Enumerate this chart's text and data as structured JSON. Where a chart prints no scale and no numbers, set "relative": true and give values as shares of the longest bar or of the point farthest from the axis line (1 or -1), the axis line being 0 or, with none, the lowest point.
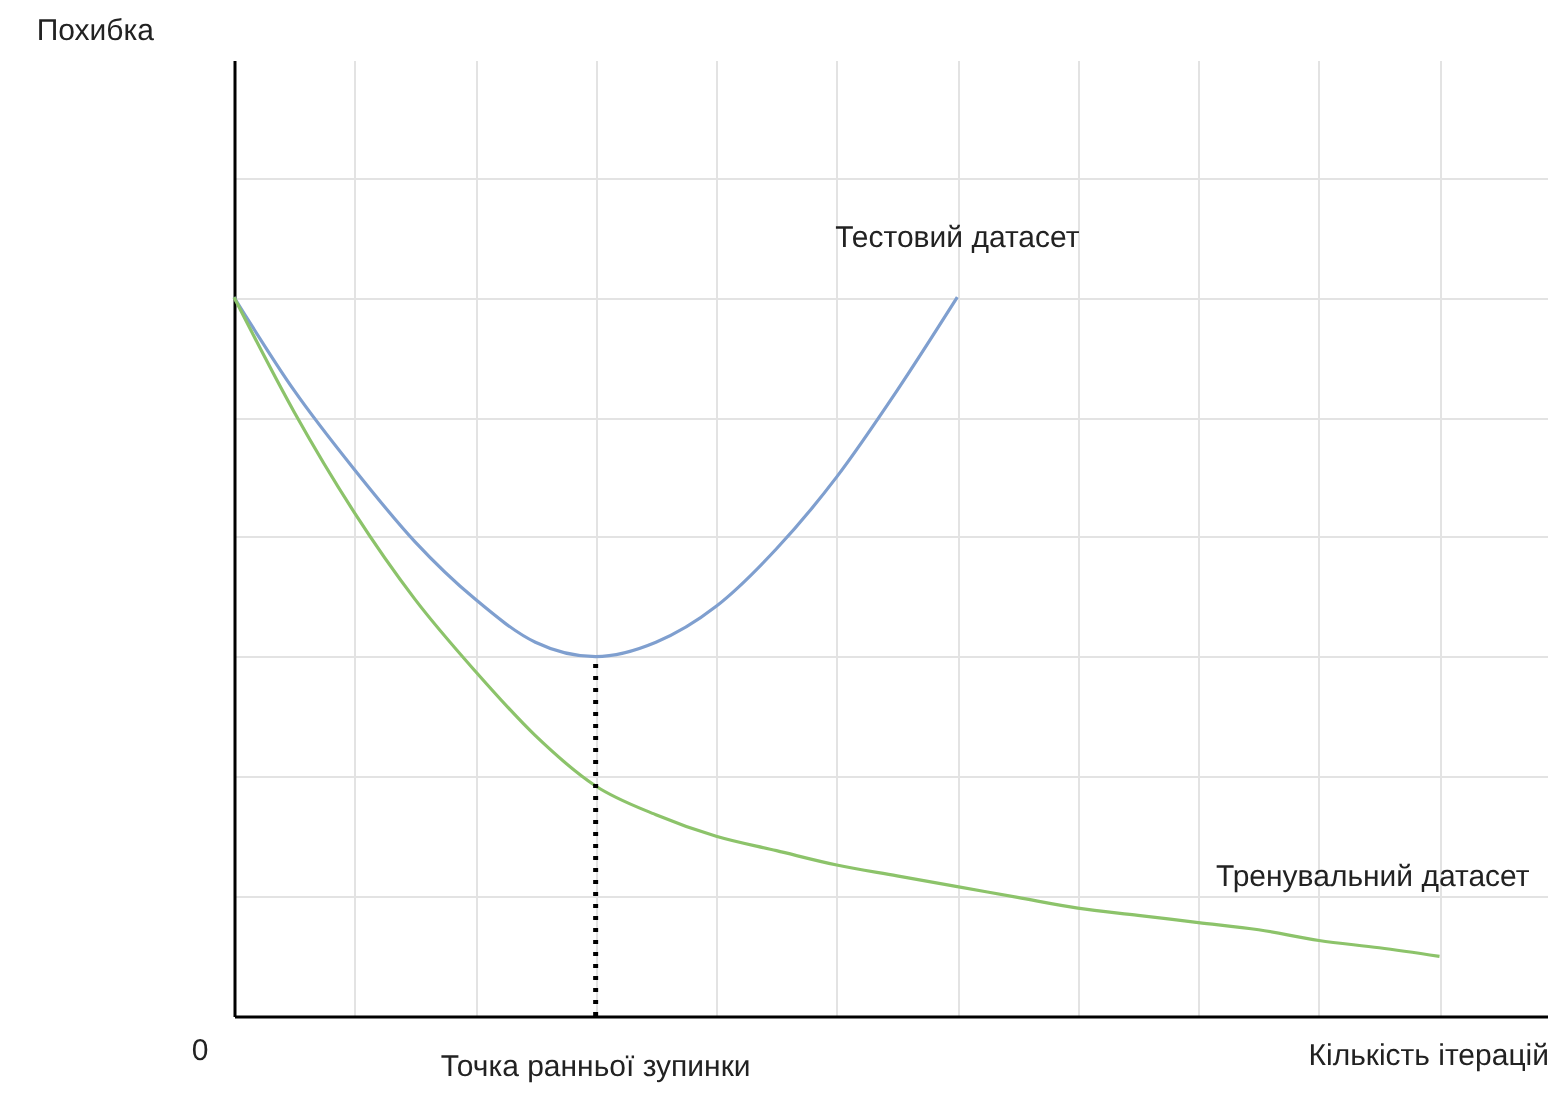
{
  "chart_data": {
    "type": "line",
    "relative": true,
    "xlabel": "Кількість ітерацій",
    "grid": true,
    "categories": [
      null,
      null,
      null,
      null,
      null,
      null,
      null,
      null,
      null,
      null,
      null,
      null,
      null,
      null,
      null,
      null,
      null,
      null,
      null,
      null,
      null
    ],
    "series": [
      {
        "name": "Тестовий датасет",
        "color": "#7f9fcf",
        "values": [
          1,
          0.87,
          0.76,
          0.66,
          0.58,
          0.52,
          0.5,
          0.52,
          0.57,
          0.65,
          0.75,
          0.87,
          1,
          null,
          null,
          null,
          null,
          null,
          null,
          null,
          null
        ]
      },
      {
        "name": "Тренувальний датасет",
        "color": "#8cc36a",
        "values": [
          1,
          0.84,
          0.7,
          0.58,
          0.48,
          0.39,
          0.32,
          0.28,
          0.25,
          0.23,
          0.21,
          0.195,
          0.18,
          0.165,
          0.15,
          0.14,
          0.13,
          0.12,
          0.105,
          0.095,
          0.083
        ]
      }
    ],
    "annotations": [
      "Похибка",
      "0",
      "Точка ранньої зупинки"
    ]
  }
}
